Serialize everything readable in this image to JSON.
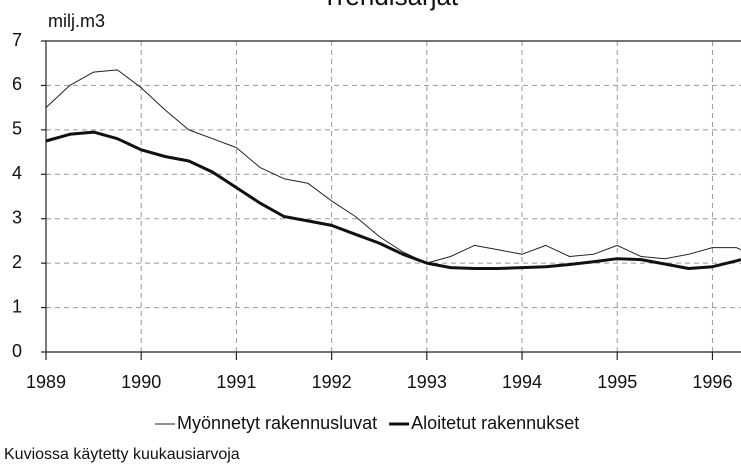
{
  "chart_data": {
    "type": "line",
    "title": "Trendisarjat",
    "y_label": "milj.m3",
    "note": "Kuviossa käytetty kuukausiarvoja",
    "x": [
      1989.0,
      1989.25,
      1989.5,
      1989.75,
      1990.0,
      1990.25,
      1990.5,
      1990.75,
      1991.0,
      1991.25,
      1991.5,
      1991.75,
      1992.0,
      1992.25,
      1992.5,
      1992.75,
      1993.0,
      1993.25,
      1993.5,
      1993.75,
      1994.0,
      1994.25,
      1994.5,
      1994.75,
      1995.0,
      1995.25,
      1995.5,
      1995.75,
      1996.0,
      1996.25,
      1996.3
    ],
    "series": [
      {
        "name": "Myönnetyt rakennusluvat",
        "color": "#222222",
        "width": 1,
        "values": [
          5.5,
          6.0,
          6.3,
          6.35,
          5.95,
          5.45,
          5.0,
          4.8,
          4.6,
          4.15,
          3.9,
          3.8,
          3.4,
          3.05,
          2.6,
          2.25,
          2.0,
          2.15,
          2.4,
          2.3,
          2.2,
          2.4,
          2.15,
          2.2,
          2.4,
          2.15,
          2.1,
          2.2,
          2.35,
          2.35,
          2.3
        ]
      },
      {
        "name": "Aloitetut rakennukset",
        "color": "#111111",
        "width": 3,
        "values": [
          4.75,
          4.9,
          4.95,
          4.8,
          4.55,
          4.4,
          4.3,
          4.05,
          3.7,
          3.35,
          3.05,
          2.95,
          2.85,
          2.65,
          2.45,
          2.2,
          2.0,
          1.9,
          1.88,
          1.88,
          1.9,
          1.92,
          1.97,
          2.03,
          2.1,
          2.08,
          1.98,
          1.88,
          1.92,
          2.05,
          2.08
        ]
      }
    ],
    "xlim": [
      1989,
      1996.3
    ],
    "xticks": [
      1989,
      1990,
      1991,
      1992,
      1993,
      1994,
      1995,
      1996
    ],
    "ylim": [
      0,
      7
    ],
    "yticks": [
      0,
      1,
      2,
      3,
      4,
      5,
      6,
      7
    ],
    "grid": true,
    "legend": "bottom"
  }
}
